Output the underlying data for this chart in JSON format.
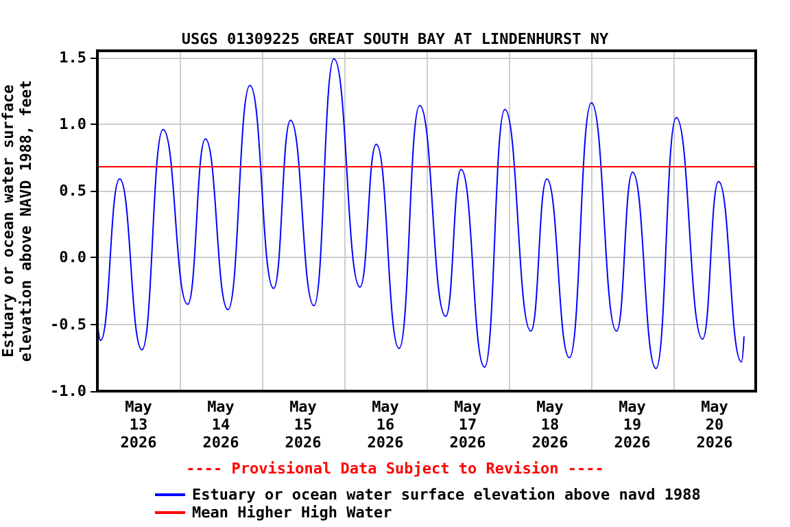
{
  "chart_data": {
    "type": "line",
    "title": "USGS 01309225 GREAT SOUTH BAY AT LINDENHURST NY",
    "ylabel": "Estuary or ocean water surface\nelevation above NAVD 1988, feet",
    "annotations": [
      "---- Provisional Data Subject to Revision ----"
    ],
    "x": [
      "2026-05-13T00:15",
      "2026-05-13T00:55",
      "2026-05-13T06:30",
      "2026-05-13T13:00",
      "2026-05-13T19:10",
      "2026-05-14T02:20",
      "2026-05-14T07:30",
      "2026-05-14T14:05",
      "2026-05-14T20:30",
      "2026-05-15T03:25",
      "2026-05-15T08:20",
      "2026-05-15T15:10",
      "2026-05-15T21:00",
      "2026-05-16T04:35",
      "2026-05-16T09:20",
      "2026-05-16T16:00",
      "2026-05-16T22:00",
      "2026-05-17T05:35",
      "2026-05-17T10:05",
      "2026-05-17T16:55",
      "2026-05-17T22:50",
      "2026-05-18T06:25",
      "2026-05-18T11:05",
      "2026-05-18T17:40",
      "2026-05-19T00:05",
      "2026-05-19T07:25",
      "2026-05-19T12:05",
      "2026-05-19T18:55",
      "2026-05-20T00:50",
      "2026-05-20T08:30",
      "2026-05-20T13:10",
      "2026-05-20T19:50",
      "2026-05-20T20:35"
    ],
    "series": [
      {
        "name": "Estuary or ocean water surface elevation above navd 1988",
        "color": "#0000ff",
        "values": [
          -0.54,
          -0.62,
          0.59,
          -0.69,
          0.96,
          -0.35,
          0.89,
          -0.39,
          1.29,
          -0.23,
          1.03,
          -0.36,
          1.49,
          -0.22,
          0.85,
          -0.68,
          1.14,
          -0.44,
          0.66,
          -0.82,
          1.11,
          -0.55,
          0.59,
          -0.75,
          1.16,
          -0.55,
          0.64,
          -0.83,
          1.05,
          -0.61,
          0.57,
          -0.78,
          -0.59
        ]
      }
    ],
    "ref_lines": [
      {
        "axis": "y",
        "value": 0.68,
        "label": "Mean Higher High Water",
        "color": "#ff0000"
      }
    ],
    "xlim": [
      "2026-05-13T00:00",
      "2026-05-21T00:00"
    ],
    "xticks": [
      {
        "value": "2026-05-13T12:00",
        "label": "May\n13\n2026"
      },
      {
        "value": "2026-05-14T00:00",
        "label": null
      },
      {
        "value": "2026-05-14T12:00",
        "label": "May\n14\n2026"
      },
      {
        "value": "2026-05-15T00:00",
        "label": null
      },
      {
        "value": "2026-05-15T12:00",
        "label": "May\n15\n2026"
      },
      {
        "value": "2026-05-16T00:00",
        "label": null
      },
      {
        "value": "2026-05-16T12:00",
        "label": "May\n16\n2026"
      },
      {
        "value": "2026-05-17T00:00",
        "label": null
      },
      {
        "value": "2026-05-17T12:00",
        "label": "May\n17\n2026"
      },
      {
        "value": "2026-05-18T00:00",
        "label": null
      },
      {
        "value": "2026-05-18T12:00",
        "label": "May\n18\n2026"
      },
      {
        "value": "2026-05-19T00:00",
        "label": null
      },
      {
        "value": "2026-05-19T12:00",
        "label": "May\n19\n2026"
      },
      {
        "value": "2026-05-20T00:00",
        "label": null
      },
      {
        "value": "2026-05-20T12:00",
        "label": "May\n20\n2026"
      }
    ],
    "ylim": [
      -1.0,
      1.55
    ],
    "yticks": [
      {
        "value": -1,
        "label": "-1.0"
      },
      {
        "value": -0.5,
        "label": "-0.5"
      },
      {
        "value": 0,
        "label": "0.0"
      },
      {
        "value": 0.5,
        "label": "0.5"
      },
      {
        "value": 1,
        "label": "1.0"
      },
      {
        "value": 1.5,
        "label": "1.5"
      }
    ],
    "grid": true,
    "legend": "bottom",
    "marker": "none",
    "line_style": "solid"
  }
}
